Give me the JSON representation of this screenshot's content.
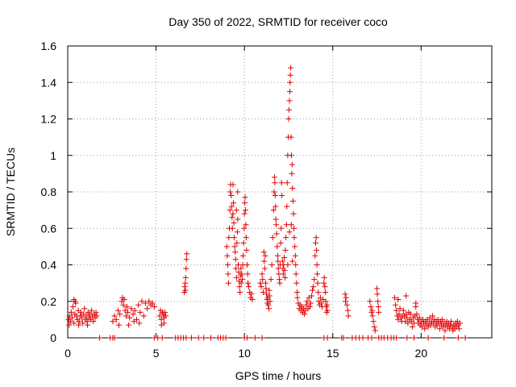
{
  "chart_data": {
    "type": "scatter",
    "title": "Day 350 of 2022, SRMTID for receiver coco",
    "xlabel": "GPS time / hours",
    "ylabel": "SRMTID / TECUs",
    "xlim": [
      0,
      24
    ],
    "ylim": [
      0,
      1.6
    ],
    "grid": true,
    "marker": "+",
    "color": "#e00000",
    "x_ticks": [
      0,
      5,
      10,
      15,
      20
    ],
    "x_tick_labels": [
      "0",
      "5",
      "10",
      "15",
      "20"
    ],
    "y_ticks": [
      0,
      0.2,
      0.4,
      0.6,
      0.8,
      1,
      1.2,
      1.4,
      1.6
    ],
    "y_tick_labels": [
      "0",
      "0.2",
      "0.4",
      "0.6",
      "0.8",
      "1",
      "1.2",
      "1.4",
      "1.6"
    ],
    "points": [
      [
        0.05,
        0.1
      ],
      [
        0.1,
        0.12
      ],
      [
        0.15,
        0.09
      ],
      [
        0.2,
        0.14
      ],
      [
        0.25,
        0.11
      ],
      [
        0.3,
        0.17
      ],
      [
        0.35,
        0.08
      ],
      [
        0.4,
        0.13
      ],
      [
        0.45,
        0.19
      ],
      [
        0.5,
        0.12
      ],
      [
        0.55,
        0.1
      ],
      [
        0.6,
        0.15
      ],
      [
        0.65,
        0.09
      ],
      [
        0.7,
        0.12
      ],
      [
        0.75,
        0.14
      ],
      [
        0.8,
        0.11
      ],
      [
        0.85,
        0.08
      ],
      [
        0.9,
        0.13
      ],
      [
        0.95,
        0.16
      ],
      [
        1.0,
        0.1
      ],
      [
        1.05,
        0.12
      ],
      [
        1.1,
        0.09
      ],
      [
        1.15,
        0.14
      ],
      [
        1.2,
        0.11
      ],
      [
        1.25,
        0.13
      ],
      [
        1.3,
        0.1
      ],
      [
        1.35,
        0.15
      ],
      [
        1.4,
        0.12
      ],
      [
        1.45,
        0.09
      ],
      [
        1.5,
        0.13
      ],
      [
        1.55,
        0.11
      ],
      [
        1.6,
        0.14
      ],
      [
        1.65,
        0.12
      ],
      [
        0.35,
        0.21
      ],
      [
        0.42,
        0.2
      ],
      [
        0.08,
        0.07
      ],
      [
        0.62,
        0.07
      ],
      [
        1.12,
        0.07
      ],
      [
        1.8,
        0
      ],
      [
        2.4,
        0
      ],
      [
        2.55,
        0
      ],
      [
        2.65,
        0
      ],
      [
        2.55,
        0.09
      ],
      [
        2.65,
        0.12
      ],
      [
        2.75,
        0.1
      ],
      [
        2.85,
        0.15
      ],
      [
        2.95,
        0.13
      ],
      [
        3.05,
        0.2
      ],
      [
        3.1,
        0.22
      ],
      [
        3.15,
        0.18
      ],
      [
        3.2,
        0.21
      ],
      [
        3.25,
        0.15
      ],
      [
        3.3,
        0.12
      ],
      [
        3.35,
        0.17
      ],
      [
        3.4,
        0.14
      ],
      [
        3.5,
        0.11
      ],
      [
        3.6,
        0.16
      ],
      [
        3.7,
        0.13
      ],
      [
        3.8,
        0.15
      ],
      [
        3.9,
        0.1
      ],
      [
        4.0,
        0.18
      ],
      [
        4.1,
        0.14
      ],
      [
        4.2,
        0.2
      ],
      [
        4.3,
        0.12
      ],
      [
        4.4,
        0.19
      ],
      [
        4.5,
        0.16
      ],
      [
        4.6,
        0.2
      ],
      [
        4.7,
        0.18
      ],
      [
        4.8,
        0.19
      ],
      [
        4.9,
        0.17
      ],
      [
        3.45,
        0.07
      ],
      [
        4.05,
        0.08
      ],
      [
        2.9,
        0.07
      ],
      [
        3.75,
        0.09
      ],
      [
        5.2,
        0.12
      ],
      [
        5.25,
        0.15
      ],
      [
        5.3,
        0.1
      ],
      [
        5.35,
        0.14
      ],
      [
        5.4,
        0.13
      ],
      [
        5.45,
        0.11
      ],
      [
        5.5,
        0.14
      ],
      [
        5.55,
        0.12
      ],
      [
        5.3,
        0.07
      ],
      [
        5.45,
        0.08
      ],
      [
        4.9,
        0
      ],
      [
        5.1,
        0
      ],
      [
        5.35,
        0
      ],
      [
        6.1,
        0
      ],
      [
        6.25,
        0
      ],
      [
        6.4,
        0
      ],
      [
        6.55,
        0
      ],
      [
        6.7,
        0
      ],
      [
        7.0,
        0
      ],
      [
        7.4,
        0
      ],
      [
        7.7,
        0
      ],
      [
        8.1,
        0
      ],
      [
        8.5,
        0
      ],
      [
        8.65,
        0
      ],
      [
        8.8,
        0
      ],
      [
        8.95,
        0
      ],
      [
        6.6,
        0.25
      ],
      [
        6.62,
        0.28
      ],
      [
        6.65,
        0.3
      ],
      [
        6.67,
        0.33
      ],
      [
        6.7,
        0.38
      ],
      [
        6.72,
        0.43
      ],
      [
        6.74,
        0.46
      ],
      [
        6.66,
        0.26
      ],
      [
        9.0,
        0.5
      ],
      [
        9.03,
        0.45
      ],
      [
        9.06,
        0.4
      ],
      [
        9.08,
        0.35
      ],
      [
        9.1,
        0.3
      ],
      [
        9.12,
        0.55
      ],
      [
        9.15,
        0.6
      ],
      [
        9.18,
        0.7
      ],
      [
        9.2,
        0.8
      ],
      [
        9.22,
        0.84
      ],
      [
        9.25,
        0.78
      ],
      [
        9.28,
        0.72
      ],
      [
        9.3,
        0.66
      ],
      [
        9.32,
        0.6
      ],
      [
        9.35,
        0.68
      ],
      [
        9.38,
        0.74
      ],
      [
        9.4,
        0.63
      ],
      [
        9.42,
        0.55
      ],
      [
        9.45,
        0.5
      ],
      [
        9.48,
        0.47
      ],
      [
        9.5,
        0.43
      ],
      [
        9.52,
        0.38
      ],
      [
        9.55,
        0.33
      ],
      [
        9.57,
        0.52
      ],
      [
        9.6,
        0.58
      ],
      [
        9.62,
        0.65
      ],
      [
        9.65,
        0.4
      ],
      [
        9.68,
        0.36
      ],
      [
        9.7,
        0.31
      ],
      [
        9.72,
        0.28
      ],
      [
        9.75,
        0.25
      ],
      [
        9.78,
        0.34
      ],
      [
        9.8,
        0.38
      ],
      [
        9.82,
        0.3
      ],
      [
        9.85,
        0.35
      ],
      [
        9.88,
        0.32
      ],
      [
        9.9,
        0.4
      ],
      [
        9.92,
        0.45
      ],
      [
        9.95,
        0.52
      ],
      [
        9.98,
        0.6
      ],
      [
        10.0,
        0.68
      ],
      [
        10.02,
        0.74
      ],
      [
        10.04,
        0.77
      ],
      [
        10.06,
        0.7
      ],
      [
        10.08,
        0.62
      ],
      [
        10.1,
        0.55
      ],
      [
        10.12,
        0.48
      ],
      [
        10.15,
        0.4
      ],
      [
        10.18,
        0.35
      ],
      [
        10.2,
        0.3
      ],
      [
        10.25,
        0.28
      ],
      [
        10.3,
        0.25
      ],
      [
        10.35,
        0.22
      ],
      [
        10.4,
        0.24
      ],
      [
        10.45,
        0.21
      ],
      [
        9.55,
        0.7
      ],
      [
        9.62,
        0.8
      ],
      [
        9.35,
        0.84
      ],
      [
        10.9,
        0.3
      ],
      [
        10.95,
        0.28
      ],
      [
        11.0,
        0.35
      ],
      [
        11.03,
        0.32
      ],
      [
        11.06,
        0.25
      ],
      [
        11.1,
        0.47
      ],
      [
        11.12,
        0.42
      ],
      [
        11.15,
        0.38
      ],
      [
        11.18,
        0.45
      ],
      [
        11.2,
        0.3
      ],
      [
        11.22,
        0.27
      ],
      [
        11.25,
        0.24
      ],
      [
        11.28,
        0.21
      ],
      [
        11.3,
        0.19
      ],
      [
        11.32,
        0.22
      ],
      [
        11.35,
        0.18
      ],
      [
        11.38,
        0.16
      ],
      [
        11.4,
        0.26
      ],
      [
        11.42,
        0.23
      ],
      [
        11.45,
        0.2
      ],
      [
        11.5,
        0.32
      ],
      [
        11.55,
        0.4
      ],
      [
        11.6,
        0.55
      ],
      [
        11.65,
        0.7
      ],
      [
        11.68,
        0.8
      ],
      [
        11.7,
        0.88
      ],
      [
        11.72,
        0.85
      ],
      [
        11.74,
        0.78
      ],
      [
        11.76,
        0.72
      ],
      [
        11.78,
        0.65
      ],
      [
        11.8,
        0.62
      ],
      [
        11.82,
        0.57
      ],
      [
        11.85,
        0.5
      ],
      [
        11.88,
        0.45
      ],
      [
        11.9,
        0.42
      ],
      [
        11.92,
        0.38
      ],
      [
        11.95,
        0.35
      ],
      [
        11.98,
        0.32
      ],
      [
        12.0,
        0.3
      ],
      [
        12.02,
        0.4
      ],
      [
        12.05,
        0.52
      ],
      [
        12.08,
        0.6
      ],
      [
        12.1,
        0.85
      ],
      [
        12.12,
        0.78
      ],
      [
        12.15,
        0.42
      ],
      [
        12.18,
        0.38
      ],
      [
        12.2,
        0.35
      ],
      [
        12.22,
        0.4
      ],
      [
        12.25,
        0.44
      ],
      [
        12.28,
        0.37
      ],
      [
        12.3,
        0.33
      ],
      [
        12.32,
        0.48
      ],
      [
        12.35,
        0.55
      ],
      [
        12.38,
        0.62
      ],
      [
        12.4,
        0.72
      ],
      [
        12.42,
        0.85
      ],
      [
        12.45,
        1.0
      ],
      [
        12.48,
        1.1
      ],
      [
        12.5,
        1.2
      ],
      [
        12.52,
        1.25
      ],
      [
        12.55,
        1.3
      ],
      [
        12.57,
        1.35
      ],
      [
        12.58,
        1.4
      ],
      [
        12.6,
        1.44
      ],
      [
        12.62,
        1.48
      ],
      [
        12.64,
        1.1
      ],
      [
        12.66,
        1.0
      ],
      [
        12.68,
        0.9
      ],
      [
        12.7,
        0.95
      ],
      [
        12.72,
        0.82
      ],
      [
        12.75,
        0.75
      ],
      [
        12.78,
        0.68
      ],
      [
        12.8,
        0.6
      ],
      [
        12.82,
        0.55
      ],
      [
        12.85,
        0.5
      ],
      [
        12.88,
        0.45
      ],
      [
        12.9,
        0.4
      ],
      [
        12.92,
        0.35
      ],
      [
        12.95,
        0.3
      ],
      [
        12.98,
        0.25
      ],
      [
        13.0,
        0.22
      ],
      [
        13.05,
        0.19
      ],
      [
        13.1,
        0.16
      ],
      [
        13.15,
        0.18
      ],
      [
        13.2,
        0.15
      ],
      [
        13.25,
        0.17
      ],
      [
        13.3,
        0.14
      ],
      [
        13.35,
        0.16
      ],
      [
        13.4,
        0.13
      ],
      [
        13.45,
        0.15
      ],
      [
        13.5,
        0.18
      ],
      [
        13.55,
        0.2
      ],
      [
        13.6,
        0.16
      ],
      [
        13.65,
        0.22
      ],
      [
        13.7,
        0.17
      ],
      [
        13.75,
        0.19
      ],
      [
        13.8,
        0.23
      ],
      [
        13.85,
        0.26
      ],
      [
        13.9,
        0.28
      ],
      [
        13.95,
        0.32
      ],
      [
        14.0,
        0.45
      ],
      [
        14.03,
        0.52
      ],
      [
        14.06,
        0.55
      ],
      [
        14.08,
        0.48
      ],
      [
        14.1,
        0.4
      ],
      [
        14.12,
        0.35
      ],
      [
        14.15,
        0.3
      ],
      [
        14.18,
        0.25
      ],
      [
        14.2,
        0.2
      ],
      [
        14.25,
        0.18
      ],
      [
        14.3,
        0.22
      ],
      [
        14.35,
        0.19
      ],
      [
        14.4,
        0.17
      ],
      [
        14.45,
        0.21
      ],
      [
        14.5,
        0.3
      ],
      [
        14.52,
        0.33
      ],
      [
        14.55,
        0.28
      ],
      [
        14.58,
        0.25
      ],
      [
        14.6,
        0.2
      ],
      [
        14.62,
        0.17
      ],
      [
        14.65,
        0.14
      ],
      [
        14.68,
        0.18
      ],
      [
        14.7,
        0.15
      ],
      [
        12.65,
        0.62
      ],
      [
        12.55,
        0.58
      ],
      [
        12.45,
        0.4
      ],
      [
        12.72,
        0.42
      ],
      [
        10.0,
        0
      ],
      [
        10.15,
        0
      ],
      [
        10.6,
        0
      ],
      [
        11.0,
        0
      ],
      [
        14.5,
        0
      ],
      [
        14.7,
        0
      ],
      [
        15.7,
        0.24
      ],
      [
        15.75,
        0.22
      ],
      [
        15.8,
        0.18
      ],
      [
        15.85,
        0.15
      ],
      [
        15.88,
        0.12
      ],
      [
        15.72,
        0.2
      ],
      [
        15.5,
        0
      ],
      [
        15.6,
        0
      ],
      [
        16.1,
        0
      ],
      [
        16.3,
        0
      ],
      [
        16.5,
        0
      ],
      [
        16.7,
        0
      ],
      [
        17.0,
        0
      ],
      [
        17.2,
        0
      ],
      [
        17.1,
        0.2
      ],
      [
        17.15,
        0.17
      ],
      [
        17.2,
        0.14
      ],
      [
        17.25,
        0.12
      ],
      [
        17.3,
        0.09
      ],
      [
        17.35,
        0.06
      ],
      [
        17.4,
        0.04
      ],
      [
        17.22,
        0.15
      ],
      [
        17.5,
        0.27
      ],
      [
        17.52,
        0.24
      ],
      [
        17.55,
        0.2
      ],
      [
        17.58,
        0.17
      ],
      [
        17.6,
        0.14
      ],
      [
        17.6,
        0
      ],
      [
        17.75,
        0
      ],
      [
        17.9,
        0
      ],
      [
        18.1,
        0
      ],
      [
        18.3,
        0
      ],
      [
        18.45,
        0
      ],
      [
        18.6,
        0
      ],
      [
        19.2,
        0
      ],
      [
        19.6,
        0
      ],
      [
        20.4,
        0
      ],
      [
        21.3,
        0
      ],
      [
        22.1,
        0
      ],
      [
        22.5,
        0
      ],
      [
        18.5,
        0.22
      ],
      [
        18.55,
        0.18
      ],
      [
        18.6,
        0.15
      ],
      [
        18.65,
        0.12
      ],
      [
        18.7,
        0.1
      ],
      [
        18.75,
        0.13
      ],
      [
        18.8,
        0.16
      ],
      [
        18.85,
        0.11
      ],
      [
        18.9,
        0.09
      ],
      [
        18.95,
        0.12
      ],
      [
        19.0,
        0.15
      ],
      [
        19.05,
        0.12
      ],
      [
        19.1,
        0.09
      ],
      [
        19.15,
        0.13
      ],
      [
        19.2,
        0.11
      ],
      [
        19.25,
        0.08
      ],
      [
        19.3,
        0.14
      ],
      [
        19.35,
        0.1
      ],
      [
        19.4,
        0.13
      ],
      [
        19.45,
        0.09
      ],
      [
        19.5,
        0.06
      ],
      [
        19.55,
        0.11
      ],
      [
        19.6,
        0.08
      ],
      [
        19.65,
        0.12
      ],
      [
        19.7,
        0.17
      ],
      [
        19.75,
        0.13
      ],
      [
        19.8,
        0.1
      ],
      [
        19.85,
        0.08
      ],
      [
        19.9,
        0.11
      ],
      [
        19.95,
        0.07
      ],
      [
        20.0,
        0.09
      ],
      [
        20.05,
        0.06
      ],
      [
        20.1,
        0.1
      ],
      [
        20.15,
        0.08
      ],
      [
        20.2,
        0.05
      ],
      [
        20.25,
        0.09
      ],
      [
        20.3,
        0.07
      ],
      [
        20.35,
        0.1
      ],
      [
        20.4,
        0.06
      ],
      [
        20.45,
        0.08
      ],
      [
        20.5,
        0.11
      ],
      [
        20.55,
        0.07
      ],
      [
        20.6,
        0.09
      ],
      [
        20.65,
        0.12
      ],
      [
        20.7,
        0.08
      ],
      [
        20.75,
        0.1
      ],
      [
        20.8,
        0.06
      ],
      [
        20.85,
        0.09
      ],
      [
        20.9,
        0.07
      ],
      [
        20.95,
        0.1
      ],
      [
        21.0,
        0.08
      ],
      [
        21.05,
        0.05
      ],
      [
        21.1,
        0.09
      ],
      [
        21.15,
        0.07
      ],
      [
        21.2,
        0.1
      ],
      [
        21.25,
        0.06
      ],
      [
        21.3,
        0.08
      ],
      [
        21.35,
        0.04
      ],
      [
        21.4,
        0.07
      ],
      [
        21.45,
        0.09
      ],
      [
        21.5,
        0.06
      ],
      [
        21.55,
        0.08
      ],
      [
        21.6,
        0.05
      ],
      [
        21.65,
        0.07
      ],
      [
        21.7,
        0.09
      ],
      [
        21.75,
        0.06
      ],
      [
        21.8,
        0.04
      ],
      [
        21.85,
        0.07
      ],
      [
        21.9,
        0.05
      ],
      [
        21.95,
        0.08
      ],
      [
        22.0,
        0.06
      ],
      [
        22.05,
        0.09
      ],
      [
        22.1,
        0.07
      ],
      [
        22.15,
        0.05
      ],
      [
        22.2,
        0.08
      ],
      [
        19.15,
        0.23
      ],
      [
        18.7,
        0.21
      ],
      [
        19.7,
        0.19
      ]
    ]
  }
}
